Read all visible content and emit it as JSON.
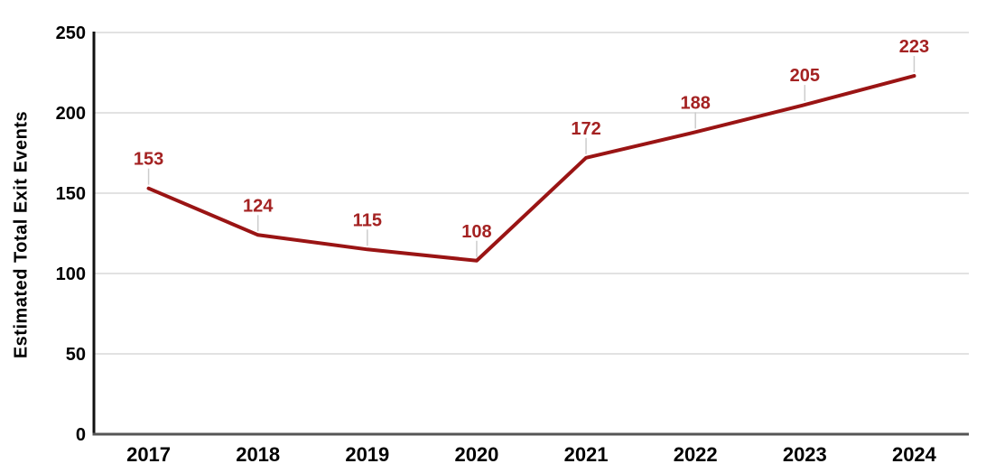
{
  "chart_data": {
    "type": "line",
    "categories": [
      "2017",
      "2018",
      "2019",
      "2020",
      "2021",
      "2022",
      "2023",
      "2024"
    ],
    "values": [
      153,
      124,
      115,
      108,
      172,
      188,
      205,
      223
    ],
    "title": "",
    "xlabel": "",
    "ylabel": "Estimated Total Exit Events",
    "ylim": [
      0,
      250
    ],
    "yticks": [
      0,
      50,
      100,
      150,
      200,
      250
    ],
    "grid": true,
    "legend": "none",
    "data_labels_visible": true,
    "colors": {
      "line": "#9A1414",
      "data_label": "#A42222",
      "grid_line": "#D8D8D8",
      "leader_line": "#CCCCCC",
      "y_axis": "#111111",
      "x_axis": "#555555",
      "tick_label": "#000000",
      "background": "#FFFFFF"
    }
  }
}
